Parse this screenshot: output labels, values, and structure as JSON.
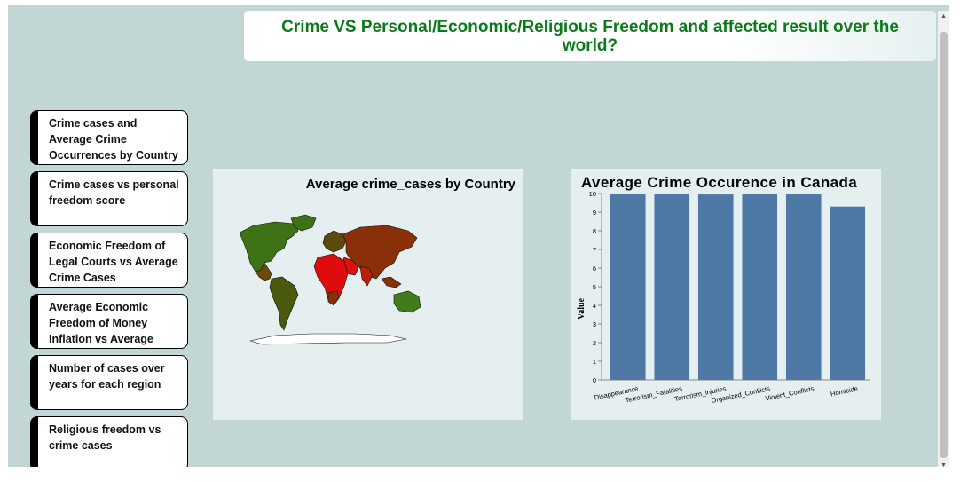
{
  "header": {
    "title": "Crime VS Personal/Economic/Religious Freedom and affected result over the world?"
  },
  "nav": {
    "items": [
      {
        "label": "Crime cases and Average Crime Occurrences by Country"
      },
      {
        "label": "Crime cases vs personal freedom score"
      },
      {
        "label": "Economic Freedom of Legal Courts vs Average Crime Cases"
      },
      {
        "label": "Average Economic Freedom of Money Inflation vs Average"
      },
      {
        "label": "Number of cases over years for each region"
      },
      {
        "label": "Religious freedom vs crime cases"
      }
    ]
  },
  "map": {
    "title": "Average crime_cases by Country",
    "colors": {
      "low": "#2e7d16",
      "mid": "#6b4a0a",
      "high": "#ff0000"
    }
  },
  "colors": {
    "bar": "#4e79a7",
    "title": "#0a7a1a",
    "background": "#c2d6d6"
  },
  "chart_data": {
    "type": "bar",
    "title": "Average Crime Occurence in Canada",
    "xlabel": "",
    "ylabel": "Value",
    "categories": [
      "Disappearance",
      "Terrorism_Fatalities",
      "Terrorism_injuries",
      "Organized_Conflicts",
      "Violent_Conflicts",
      "Homicide"
    ],
    "values": [
      10,
      10,
      9.95,
      10,
      10,
      9.3
    ],
    "ylim": [
      0,
      10
    ],
    "yticks": [
      0,
      1,
      2,
      3,
      4,
      5,
      6,
      7,
      8,
      9,
      10
    ],
    "grid": false
  }
}
